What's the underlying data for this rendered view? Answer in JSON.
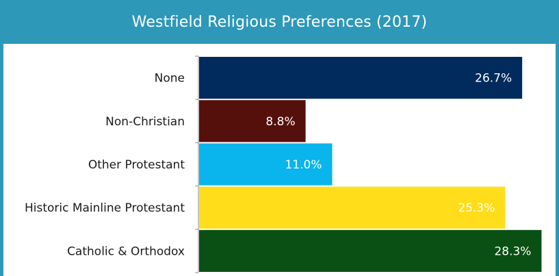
{
  "title": "Westfield Religious Preferences (2017)",
  "colors": {
    "header": "#2e98b8"
  },
  "chart_data": {
    "type": "bar",
    "orientation": "horizontal",
    "title": "Westfield Religious Preferences (2017)",
    "categories": [
      "None",
      "Non-Christian",
      "Other Protestant",
      "Historic Mainline Protestant",
      "Catholic & Orthodox"
    ],
    "values": [
      26.7,
      8.8,
      11.0,
      25.3,
      28.3
    ],
    "value_labels": [
      "26.7%",
      "8.8%",
      "11.0%",
      "25.3%",
      "28.3%"
    ],
    "colors": [
      "#002b5c",
      "#55100c",
      "#0ab4ec",
      "#ffdd1a",
      "#0a5014"
    ],
    "xlim": [
      0,
      28.5
    ],
    "unit": "%",
    "grid": false,
    "legend": "none"
  }
}
